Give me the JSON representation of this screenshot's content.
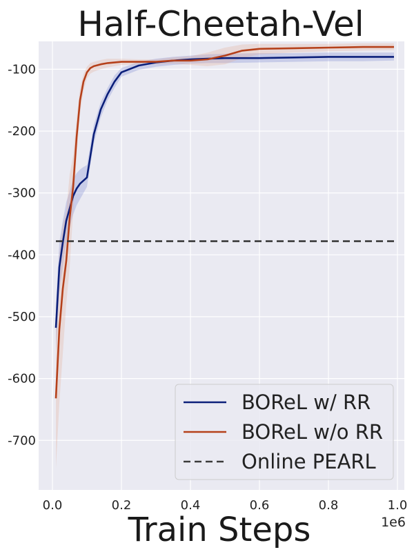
{
  "chart_data": {
    "type": "line",
    "title": "Half-Cheetah-Vel",
    "xlabel": "Train Steps",
    "ylabel": "",
    "x_scale_label": "1e6",
    "xlim": [
      -0.04,
      1.02
    ],
    "ylim": [
      -780,
      -55
    ],
    "x_ticks": [
      0.0,
      0.2,
      0.4,
      0.6,
      0.8,
      1.0
    ],
    "x_tick_labels": [
      "0.0",
      "0.2",
      "0.4",
      "0.6",
      "0.8",
      "1.0"
    ],
    "y_ticks": [
      -700,
      -600,
      -500,
      -400,
      -300,
      -200,
      -100
    ],
    "y_tick_labels": [
      "-700",
      "-600",
      "-500",
      "-400",
      "-300",
      "-200",
      "-100"
    ],
    "grid": true,
    "legend_position": "bottom-right",
    "series": [
      {
        "name": "BOReL w/ RR",
        "color": "#0b1f7a",
        "band_color": "#6f7fcf",
        "style": "solid",
        "x": [
          0.01,
          0.02,
          0.03,
          0.04,
          0.05,
          0.06,
          0.07,
          0.08,
          0.09,
          0.1,
          0.12,
          0.14,
          0.16,
          0.18,
          0.2,
          0.25,
          0.3,
          0.35,
          0.4,
          0.45,
          0.5,
          0.6,
          0.7,
          0.8,
          0.9,
          0.99
        ],
        "y": [
          -518,
          -420,
          -380,
          -345,
          -325,
          -305,
          -293,
          -285,
          -280,
          -275,
          -205,
          -165,
          -140,
          -120,
          -105,
          -94,
          -89,
          -86,
          -84,
          -83,
          -82,
          -82,
          -81,
          -80,
          -80,
          -80
        ],
        "lower": [
          -555,
          -460,
          -420,
          -380,
          -355,
          -335,
          -320,
          -310,
          -300,
          -290,
          -220,
          -178,
          -150,
          -130,
          -112,
          -101,
          -96,
          -93,
          -91,
          -90,
          -90,
          -89,
          -88,
          -87,
          -87,
          -86
        ],
        "upper": [
          -480,
          -380,
          -345,
          -315,
          -297,
          -278,
          -268,
          -262,
          -258,
          -255,
          -190,
          -153,
          -130,
          -110,
          -98,
          -88,
          -83,
          -80,
          -78,
          -76,
          -75,
          -74,
          -74,
          -73,
          -73,
          -73
        ]
      },
      {
        "name": "BOReL w/o RR",
        "color": "#b5401a",
        "band_color": "#e2a995",
        "style": "solid",
        "x": [
          0.01,
          0.02,
          0.03,
          0.04,
          0.05,
          0.06,
          0.07,
          0.08,
          0.09,
          0.1,
          0.11,
          0.12,
          0.14,
          0.16,
          0.2,
          0.25,
          0.3,
          0.35,
          0.4,
          0.45,
          0.5,
          0.55,
          0.6,
          0.7,
          0.8,
          0.9,
          0.99
        ],
        "y": [
          -632,
          -520,
          -455,
          -410,
          -340,
          -290,
          -210,
          -150,
          -120,
          -105,
          -98,
          -95,
          -92,
          -90,
          -88,
          -88,
          -88,
          -86,
          -86,
          -84,
          -78,
          -70,
          -67,
          -66,
          -65,
          -64,
          -64
        ],
        "lower": [
          -745,
          -640,
          -560,
          -480,
          -420,
          -330,
          -240,
          -170,
          -135,
          -115,
          -107,
          -104,
          -100,
          -97,
          -93,
          -92,
          -92,
          -91,
          -93,
          -95,
          -92,
          -82,
          -76,
          -73,
          -71,
          -70,
          -69
        ],
        "upper": [
          -520,
          -400,
          -350,
          -330,
          -270,
          -240,
          -180,
          -130,
          -108,
          -96,
          -90,
          -88,
          -85,
          -83,
          -83,
          -84,
          -84,
          -81,
          -79,
          -73,
          -65,
          -60,
          -59,
          -59,
          -59,
          -58,
          -58
        ]
      },
      {
        "name": "Online PEARL",
        "color": "#3a3a3a",
        "style": "dashed",
        "x": [
          0.01,
          0.99
        ],
        "y": [
          -378,
          -378
        ]
      }
    ]
  }
}
